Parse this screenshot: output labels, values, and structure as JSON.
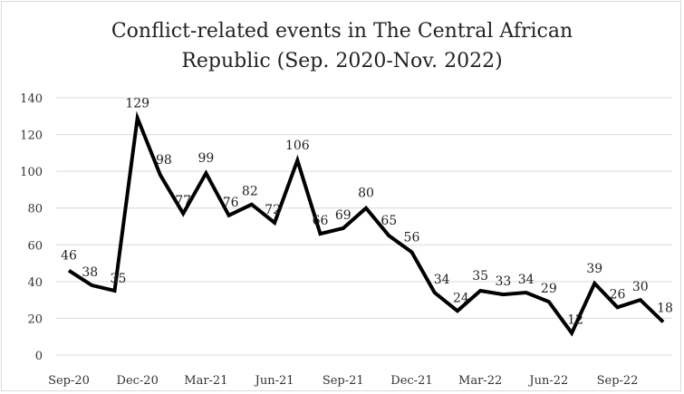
{
  "chart_data": {
    "type": "line",
    "title_line1": "Conflict-related events in The Central African",
    "title_line2": "Republic (Sep. 2020-Nov. 2022)",
    "xlabel": "",
    "ylabel": "",
    "ylim": [
      0,
      140
    ],
    "yticks": [
      0,
      20,
      40,
      60,
      80,
      100,
      120,
      140
    ],
    "x": [
      "Sep-20",
      "Oct-20",
      "Nov-20",
      "Dec-20",
      "Jan-21",
      "Feb-21",
      "Mar-21",
      "Apr-21",
      "May-21",
      "Jun-21",
      "Jul-21",
      "Aug-21",
      "Sep-21",
      "Oct-21",
      "Nov-21",
      "Dec-21",
      "Jan-22",
      "Feb-22",
      "Mar-22",
      "Apr-22",
      "May-22",
      "Jun-22",
      "Jul-22",
      "Aug-22",
      "Sep-22",
      "Oct-22",
      "Nov-22"
    ],
    "xtick_labels": [
      "Sep-20",
      "Dec-20",
      "Mar-21",
      "Jun-21",
      "Sep-21",
      "Dec-21",
      "Mar-22",
      "Jun-22",
      "Sep-22"
    ],
    "values": [
      46,
      38,
      35,
      129,
      98,
      77,
      99,
      76,
      82,
      72,
      106,
      66,
      69,
      80,
      65,
      56,
      34,
      24,
      35,
      33,
      34,
      29,
      12,
      39,
      26,
      30,
      18
    ],
    "grid": true,
    "legend": "none",
    "line_color": "#000000",
    "grid_color": "#d9d9d9"
  }
}
